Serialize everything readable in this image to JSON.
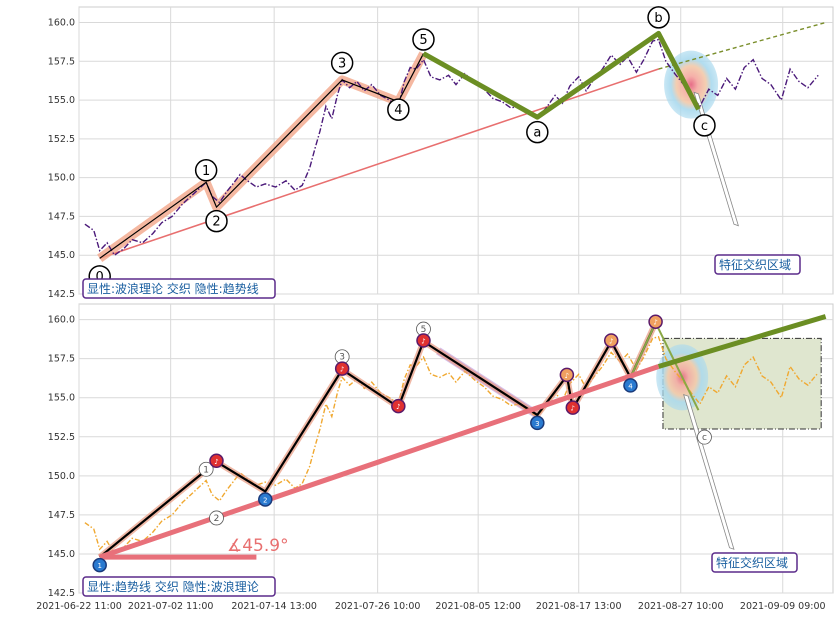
{
  "chart_data": [
    {
      "type": "line",
      "panel": "top",
      "legend_label": "显性:波浪理论 交织 隐性:趋势线",
      "region_label": "特征交织区域",
      "ylim": [
        142.5,
        161.0
      ],
      "yticks": [
        142.5,
        145.0,
        147.5,
        150.0,
        152.5,
        155.0,
        157.5,
        160.0
      ],
      "grid": true,
      "price_series": [
        [
          0.4,
          147.0
        ],
        [
          1.0,
          146.6
        ],
        [
          1.4,
          145.3
        ],
        [
          1.9,
          145.8
        ],
        [
          2.4,
          145.0
        ],
        [
          3.0,
          145.4
        ],
        [
          3.6,
          146.0
        ],
        [
          4.3,
          145.8
        ],
        [
          5.0,
          146.4
        ],
        [
          5.6,
          147.1
        ],
        [
          6.3,
          147.5
        ],
        [
          7.0,
          148.3
        ],
        [
          7.8,
          149.0
        ],
        [
          8.6,
          149.7
        ],
        [
          9.0,
          148.8
        ],
        [
          9.5,
          148.4
        ],
        [
          10.0,
          149.1
        ],
        [
          10.5,
          149.7
        ],
        [
          10.9,
          150.2
        ],
        [
          11.4,
          149.8
        ],
        [
          12.0,
          149.4
        ],
        [
          12.6,
          149.6
        ],
        [
          13.3,
          149.4
        ],
        [
          14.0,
          149.8
        ],
        [
          14.6,
          149.2
        ],
        [
          15.1,
          149.5
        ],
        [
          15.6,
          150.6
        ],
        [
          16.0,
          152.0
        ],
        [
          16.3,
          153.0
        ],
        [
          16.7,
          154.6
        ],
        [
          17.1,
          153.8
        ],
        [
          17.5,
          155.4
        ],
        [
          17.8,
          156.3
        ],
        [
          18.3,
          155.8
        ],
        [
          18.8,
          156.2
        ],
        [
          19.3,
          155.6
        ],
        [
          19.8,
          156.0
        ],
        [
          20.4,
          155.3
        ],
        [
          21.0,
          155.0
        ],
        [
          21.6,
          154.6
        ],
        [
          22.0,
          156.2
        ],
        [
          22.4,
          157.1
        ],
        [
          22.8,
          157.0
        ],
        [
          23.3,
          157.6
        ],
        [
          23.8,
          156.5
        ],
        [
          24.4,
          156.3
        ],
        [
          25.0,
          156.6
        ],
        [
          25.5,
          156.0
        ],
        [
          26.1,
          156.7
        ],
        [
          26.8,
          156.1
        ],
        [
          27.4,
          155.7
        ],
        [
          28.0,
          155.1
        ],
        [
          28.6,
          154.9
        ],
        [
          29.2,
          154.5
        ],
        [
          29.8,
          154.6
        ],
        [
          30.4,
          154.1
        ],
        [
          31.0,
          153.8
        ],
        [
          31.6,
          154.5
        ],
        [
          32.2,
          155.3
        ],
        [
          32.7,
          154.8
        ],
        [
          33.2,
          155.9
        ],
        [
          33.8,
          156.5
        ],
        [
          34.3,
          155.6
        ],
        [
          34.8,
          156.3
        ],
        [
          35.4,
          157.0
        ],
        [
          36.0,
          157.9
        ],
        [
          36.6,
          157.3
        ],
        [
          37.1,
          157.8
        ],
        [
          37.7,
          156.8
        ],
        [
          38.2,
          157.6
        ],
        [
          38.8,
          158.8
        ],
        [
          39.2,
          158.9
        ],
        [
          39.7,
          157.5
        ],
        [
          40.3,
          156.7
        ],
        [
          40.9,
          156.0
        ],
        [
          41.5,
          155.2
        ],
        [
          42.0,
          154.6
        ],
        [
          42.6,
          155.7
        ],
        [
          43.2,
          155.3
        ],
        [
          43.8,
          156.4
        ],
        [
          44.4,
          155.7
        ],
        [
          45.0,
          157.1
        ],
        [
          45.6,
          157.6
        ],
        [
          46.2,
          156.4
        ],
        [
          46.8,
          156.0
        ],
        [
          47.5,
          155.0
        ],
        [
          48.1,
          157.0
        ],
        [
          48.7,
          156.2
        ],
        [
          49.3,
          155.8
        ],
        [
          50.0,
          156.6
        ]
      ],
      "wave_points": [
        {
          "label": "0",
          "x": 1.4,
          "y": 144.8
        },
        {
          "label": "1",
          "x": 8.6,
          "y": 149.7
        },
        {
          "label": "2",
          "x": 9.3,
          "y": 148.1
        },
        {
          "label": "3",
          "x": 17.8,
          "y": 156.3
        },
        {
          "label": "4",
          "x": 21.6,
          "y": 154.9
        },
        {
          "label": "5",
          "x": 23.3,
          "y": 158.0
        },
        {
          "label": "a",
          "x": 31.0,
          "y": 153.9
        },
        {
          "label": "b",
          "x": 39.2,
          "y": 159.3
        },
        {
          "label": "c",
          "x": 41.9,
          "y": 154.4
        }
      ],
      "trend_line": {
        "from": [
          1.4,
          144.8
        ],
        "to": [
          39.2,
          157.0
        ]
      },
      "trend_extension": {
        "from": [
          39.2,
          157.0
        ],
        "to": [
          50.5,
          160.0
        ]
      }
    },
    {
      "type": "line",
      "panel": "bottom",
      "legend_label": "显性:趋势线 交织 隐性:波浪理论",
      "region_label": "特征交织区域",
      "angle_label": "∡45.9°",
      "ylim": [
        142.5,
        161.0
      ],
      "yticks": [
        142.5,
        145.0,
        147.5,
        150.0,
        152.5,
        155.0,
        157.5,
        160.0
      ],
      "grid": true,
      "x_tick_labels": [
        {
          "pos": 0,
          "text": "2021-06-22 11:00"
        },
        {
          "pos": 6.2,
          "text": "2021-07-02 11:00"
        },
        {
          "pos": 13.2,
          "text": "2021-07-14 13:00"
        },
        {
          "pos": 20.2,
          "text": "2021-07-26 10:00"
        },
        {
          "pos": 27.0,
          "text": "2021-08-05 12:00"
        },
        {
          "pos": 33.8,
          "text": "2021-08-17 13:00"
        },
        {
          "pos": 40.7,
          "text": "2021-08-27 10:00"
        },
        {
          "pos": 47.6,
          "text": "2021-09-09 09:00"
        }
      ],
      "price_series": [
        [
          0.4,
          147.0
        ],
        [
          1.0,
          146.6
        ],
        [
          1.4,
          145.3
        ],
        [
          1.9,
          145.8
        ],
        [
          2.4,
          145.0
        ],
        [
          3.0,
          145.4
        ],
        [
          3.6,
          146.0
        ],
        [
          4.3,
          145.8
        ],
        [
          5.0,
          146.4
        ],
        [
          5.6,
          147.1
        ],
        [
          6.3,
          147.5
        ],
        [
          7.0,
          148.3
        ],
        [
          7.8,
          149.0
        ],
        [
          8.6,
          149.7
        ],
        [
          9.0,
          148.8
        ],
        [
          9.5,
          148.4
        ],
        [
          10.0,
          149.1
        ],
        [
          10.5,
          149.7
        ],
        [
          10.9,
          150.2
        ],
        [
          11.4,
          149.8
        ],
        [
          12.0,
          149.4
        ],
        [
          12.6,
          149.6
        ],
        [
          13.3,
          149.4
        ],
        [
          14.0,
          149.8
        ],
        [
          14.6,
          149.2
        ],
        [
          15.1,
          149.5
        ],
        [
          15.6,
          150.6
        ],
        [
          16.0,
          152.0
        ],
        [
          16.3,
          153.0
        ],
        [
          16.7,
          154.6
        ],
        [
          17.1,
          153.8
        ],
        [
          17.5,
          155.4
        ],
        [
          17.8,
          156.3
        ],
        [
          18.3,
          155.8
        ],
        [
          18.8,
          156.2
        ],
        [
          19.3,
          155.6
        ],
        [
          19.8,
          156.0
        ],
        [
          20.4,
          155.3
        ],
        [
          21.0,
          155.0
        ],
        [
          21.6,
          154.6
        ],
        [
          22.0,
          156.2
        ],
        [
          22.4,
          157.1
        ],
        [
          22.8,
          157.0
        ],
        [
          23.3,
          157.6
        ],
        [
          23.8,
          156.5
        ],
        [
          24.4,
          156.3
        ],
        [
          25.0,
          156.6
        ],
        [
          25.5,
          156.0
        ],
        [
          26.1,
          156.7
        ],
        [
          26.8,
          156.1
        ],
        [
          27.4,
          155.7
        ],
        [
          28.0,
          155.1
        ],
        [
          28.6,
          154.9
        ],
        [
          29.2,
          154.5
        ],
        [
          29.8,
          154.6
        ],
        [
          30.4,
          154.1
        ],
        [
          31.0,
          153.8
        ],
        [
          31.6,
          154.5
        ],
        [
          32.2,
          155.3
        ],
        [
          32.7,
          154.8
        ],
        [
          33.2,
          155.9
        ],
        [
          33.8,
          156.5
        ],
        [
          34.3,
          155.6
        ],
        [
          34.8,
          156.3
        ],
        [
          35.4,
          157.0
        ],
        [
          36.0,
          157.9
        ],
        [
          36.6,
          157.3
        ],
        [
          37.1,
          157.8
        ],
        [
          37.7,
          156.8
        ],
        [
          38.2,
          157.6
        ],
        [
          38.8,
          158.8
        ],
        [
          39.2,
          158.9
        ],
        [
          39.7,
          157.5
        ],
        [
          40.3,
          156.7
        ],
        [
          40.9,
          156.0
        ],
        [
          41.5,
          155.2
        ],
        [
          42.0,
          154.6
        ],
        [
          42.6,
          155.7
        ],
        [
          43.2,
          155.3
        ],
        [
          43.8,
          156.4
        ],
        [
          44.4,
          155.7
        ],
        [
          45.0,
          157.1
        ],
        [
          45.6,
          157.6
        ],
        [
          46.2,
          156.4
        ],
        [
          46.8,
          156.0
        ],
        [
          47.5,
          155.0
        ],
        [
          48.1,
          157.0
        ],
        [
          48.7,
          156.2
        ],
        [
          49.3,
          155.8
        ],
        [
          50.0,
          156.6
        ]
      ],
      "zigzag_points": [
        {
          "x": 1.4,
          "y": 144.8,
          "kind": "low",
          "tag": "1"
        },
        {
          "x": 9.3,
          "y": 150.9,
          "kind": "high"
        },
        {
          "x": 12.6,
          "y": 149.0,
          "kind": "low",
          "tag": "2"
        },
        {
          "x": 17.8,
          "y": 156.8,
          "kind": "high"
        },
        {
          "x": 21.6,
          "y": 154.4,
          "kind": "high"
        },
        {
          "x": 23.3,
          "y": 158.6,
          "kind": "high"
        },
        {
          "x": 31.0,
          "y": 153.9,
          "kind": "low",
          "tag": "3"
        },
        {
          "x": 33.0,
          "y": 156.4,
          "kind": "mid"
        },
        {
          "x": 33.4,
          "y": 154.3,
          "kind": "high"
        },
        {
          "x": 36.0,
          "y": 158.6,
          "kind": "mid"
        },
        {
          "x": 37.3,
          "y": 156.3,
          "kind": "low",
          "tag": "4"
        },
        {
          "x": 39.0,
          "y": 159.8,
          "kind": "mid"
        }
      ],
      "wave_shadow_points": [
        {
          "label": "1",
          "x": 8.6,
          "y": 150.1
        },
        {
          "label": "2",
          "x": 9.3,
          "y": 148.2
        },
        {
          "label": "3",
          "x": 17.8,
          "y": 156.6
        },
        {
          "label": "5",
          "x": 23.3,
          "y": 158.5
        },
        {
          "label": "c",
          "x": 41.9,
          "y": 153.5
        }
      ],
      "trend_line": {
        "from": [
          1.4,
          144.8
        ],
        "to": [
          39.2,
          157.0
        ]
      },
      "trend_extension": {
        "from": [
          39.2,
          157.0
        ],
        "to": [
          50.5,
          160.2
        ]
      },
      "angle_base": {
        "from": [
          1.4,
          144.8
        ],
        "to": [
          12.0,
          144.8
        ]
      }
    }
  ]
}
